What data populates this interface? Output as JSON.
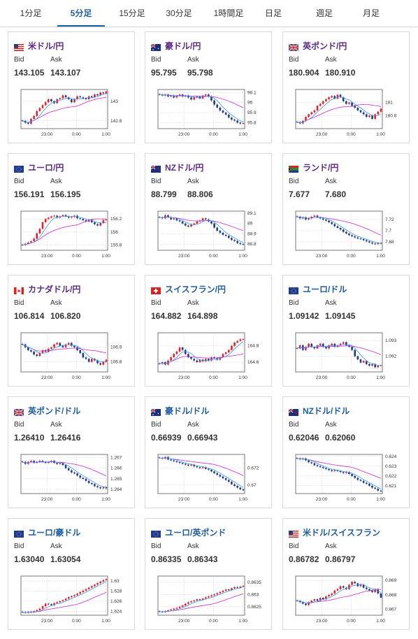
{
  "tabs": [
    {
      "label": "1分足",
      "active": false
    },
    {
      "label": "5分足",
      "active": true
    },
    {
      "label": "15分足",
      "active": false
    },
    {
      "label": "30分足",
      "active": false
    },
    {
      "label": "1時間足",
      "active": false
    },
    {
      "label": "日足",
      "active": false
    },
    {
      "label": "週足",
      "active": false
    },
    {
      "label": "月足",
      "active": false
    }
  ],
  "bid_label": "Bid",
  "ask_label": "Ask",
  "x_ticks": [
    "23:00",
    "0:00",
    "1:00"
  ],
  "colors": {
    "up": "#e0202c",
    "down": "#1c3a8c",
    "ma_short": "#3b9ae0",
    "ma_long": "#cc2ad6",
    "title_purple": "#5a2a86",
    "title_blue": "#1f5d9f",
    "grid": "#c8c8c8"
  },
  "cards": [
    {
      "title": "米ドル/円",
      "title_color": "purple",
      "flag": "us-flag",
      "bid": "143.105",
      "ask": "143.107",
      "y_ticks": [
        "143",
        "142.8"
      ],
      "chart_data": {
        "type": "candlestick",
        "ylim": [
          142.72,
          143.12
        ],
        "closes": [
          142.8,
          142.78,
          142.77,
          142.82,
          142.85,
          142.9,
          142.93,
          142.96,
          142.99,
          143.02,
          143.0,
          142.98,
          143.02,
          143.03,
          143.06,
          143.04,
          143.02,
          142.99,
          143.02,
          143.05,
          143.04,
          143.03,
          143.02,
          143.05,
          143.04,
          143.07,
          143.06,
          143.09,
          143.08,
          143.1
        ]
      }
    },
    {
      "title": "豪ドル/円",
      "title_color": "purple",
      "flag": "au-flag",
      "bid": "95.795",
      "ask": "95.798",
      "y_ticks": [
        "96.1",
        "96",
        "95.9",
        "95.8"
      ],
      "chart_data": {
        "type": "candlestick",
        "ylim": [
          95.74,
          96.13
        ],
        "closes": [
          96.08,
          96.07,
          96.08,
          96.06,
          96.07,
          96.05,
          96.07,
          96.08,
          96.06,
          96.07,
          96.05,
          96.03,
          96.05,
          96.06,
          96.04,
          96.07,
          96.08,
          96.06,
          96.02,
          95.98,
          95.95,
          95.92,
          95.9,
          95.88,
          95.85,
          95.83,
          95.82,
          95.8,
          95.79,
          95.795
        ]
      }
    },
    {
      "title": "英ポンド/円",
      "title_color": "purple",
      "flag": "gb-flag",
      "bid": "180.904",
      "ask": "180.910",
      "y_ticks": [
        "181",
        "180.8"
      ],
      "chart_data": {
        "type": "candlestick",
        "ylim": [
          180.6,
          181.2
        ],
        "closes": [
          180.7,
          180.68,
          180.72,
          180.78,
          180.82,
          180.85,
          180.88,
          180.95,
          180.98,
          181.02,
          181.05,
          181.08,
          181.1,
          181.06,
          181.12,
          181.08,
          181.02,
          180.98,
          181.0,
          180.95,
          180.92,
          180.88,
          180.85,
          180.82,
          180.78,
          180.8,
          180.75,
          180.82,
          180.86,
          180.904
        ]
      }
    },
    {
      "title": "ユーロ/円",
      "title_color": "purple",
      "flag": "eu-flag",
      "bid": "156.191",
      "ask": "156.195",
      "y_ticks": [
        "156.2",
        "156",
        "155.8"
      ],
      "chart_data": {
        "type": "candlestick",
        "ylim": [
          155.72,
          156.32
        ],
        "closes": [
          155.8,
          155.82,
          155.84,
          155.86,
          155.9,
          155.98,
          156.05,
          156.15,
          156.2,
          156.22,
          156.24,
          156.25,
          156.22,
          156.24,
          156.26,
          156.24,
          156.22,
          156.23,
          156.25,
          156.21,
          156.2,
          156.18,
          156.16,
          156.19,
          156.15,
          156.12,
          156.1,
          156.14,
          156.18,
          156.191
        ]
      }
    },
    {
      "title": "NZドル/円",
      "title_color": "purple",
      "flag": "nz-flag",
      "bid": "88.799",
      "ask": "88.806",
      "y_ticks": [
        "89.1",
        "89",
        "88.9",
        "88.8"
      ],
      "chart_data": {
        "type": "candlestick",
        "ylim": [
          88.74,
          89.12
        ],
        "closes": [
          89.06,
          89.05,
          89.08,
          89.06,
          89.04,
          89.05,
          89.03,
          89.02,
          89.0,
          88.98,
          88.97,
          88.99,
          89.0,
          89.02,
          89.03,
          89.05,
          89.04,
          89.02,
          89.0,
          88.96,
          88.93,
          88.91,
          88.89,
          88.88,
          88.86,
          88.84,
          88.83,
          88.81,
          88.8,
          88.799
        ]
      }
    },
    {
      "title": "ランド/円",
      "title_color": "purple",
      "flag": "za-flag",
      "bid": "7.677",
      "ask": "7.680",
      "y_ticks": [
        "7.72",
        "7.7",
        "7.68"
      ],
      "chart_data": {
        "type": "candlestick",
        "ylim": [
          7.665,
          7.735
        ],
        "closes": [
          7.725,
          7.722,
          7.724,
          7.72,
          7.722,
          7.725,
          7.727,
          7.724,
          7.722,
          7.72,
          7.718,
          7.715,
          7.712,
          7.708,
          7.705,
          7.702,
          7.698,
          7.695,
          7.692,
          7.69,
          7.688,
          7.686,
          7.685,
          7.683,
          7.681,
          7.679,
          7.677,
          7.676,
          7.678,
          7.677
        ]
      }
    },
    {
      "title": "カナダドル/円",
      "title_color": "purple",
      "flag": "ca-flag",
      "bid": "106.814",
      "ask": "106.820",
      "y_ticks": [
        "106.9",
        "106.8"
      ],
      "chart_data": {
        "type": "candlestick",
        "ylim": [
          106.73,
          107.0
        ],
        "closes": [
          106.92,
          106.9,
          106.88,
          106.87,
          106.85,
          106.84,
          106.86,
          106.88,
          106.87,
          106.89,
          106.9,
          106.92,
          106.93,
          106.91,
          106.9,
          106.92,
          106.93,
          106.91,
          106.9,
          106.88,
          106.86,
          106.83,
          106.82,
          106.8,
          106.82,
          106.81,
          106.79,
          106.78,
          106.8,
          106.814
        ]
      }
    },
    {
      "title": "スイスフラン/円",
      "title_color": "blue",
      "flag": "ch-flag",
      "bid": "164.882",
      "ask": "164.898",
      "y_ticks": [
        "164.8",
        "164.6"
      ],
      "chart_data": {
        "type": "candlestick",
        "ylim": [
          164.48,
          164.96
        ],
        "closes": [
          164.58,
          164.6,
          164.57,
          164.62,
          164.66,
          164.7,
          164.73,
          164.78,
          164.75,
          164.7,
          164.66,
          164.64,
          164.62,
          164.6,
          164.63,
          164.61,
          164.64,
          164.62,
          164.66,
          164.65,
          164.63,
          164.66,
          164.7,
          164.72,
          164.75,
          164.8,
          164.84,
          164.86,
          164.88,
          164.882
        ]
      }
    },
    {
      "title": "ユーロ/ドル",
      "title_color": "blue",
      "flag": "eu-flag",
      "bid": "1.09142",
      "ask": "1.09145",
      "y_ticks": [
        "1.093",
        "1.092"
      ],
      "chart_data": {
        "type": "candlestick",
        "ylim": [
          1.091,
          1.0935
        ],
        "closes": [
          1.0925,
          1.0927,
          1.0924,
          1.0926,
          1.0928,
          1.0926,
          1.0925,
          1.0927,
          1.0928,
          1.0926,
          1.0925,
          1.0927,
          1.0928,
          1.0926,
          1.0927,
          1.0928,
          1.0929,
          1.0927,
          1.0926,
          1.0924,
          1.092,
          1.0918,
          1.0916,
          1.0917,
          1.0915,
          1.0914,
          1.0915,
          1.0913,
          1.0914,
          1.09142
        ]
      }
    },
    {
      "title": "英ポンド/ドル",
      "title_color": "blue",
      "flag": "gb-flag",
      "bid": "1.26410",
      "ask": "1.26416",
      "y_ticks": [
        "1.267",
        "1.266",
        "1.265",
        "1.264"
      ],
      "chart_data": {
        "type": "candlestick",
        "ylim": [
          1.2636,
          1.2673
        ],
        "closes": [
          1.2666,
          1.2664,
          1.2666,
          1.2667,
          1.2665,
          1.2666,
          1.2667,
          1.2666,
          1.2665,
          1.2666,
          1.2667,
          1.2665,
          1.2664,
          1.2665,
          1.2663,
          1.266,
          1.2658,
          1.2656,
          1.2655,
          1.2653,
          1.2651,
          1.265,
          1.2648,
          1.2646,
          1.2645,
          1.2643,
          1.2642,
          1.2641,
          1.2642,
          1.2641
        ]
      }
    },
    {
      "title": "豪ドル/ドル",
      "title_color": "blue",
      "flag": "au-flag",
      "bid": "0.66939",
      "ask": "0.66943",
      "y_ticks": [
        "0.672",
        "0.67"
      ],
      "chart_data": {
        "type": "candlestick",
        "ylim": [
          0.669,
          0.6736
        ],
        "closes": [
          0.6732,
          0.6731,
          0.6733,
          0.673,
          0.6729,
          0.6728,
          0.6727,
          0.6726,
          0.6725,
          0.6724,
          0.6723,
          0.6724,
          0.6722,
          0.6721,
          0.672,
          0.6721,
          0.6719,
          0.6718,
          0.6716,
          0.6714,
          0.6712,
          0.671,
          0.6708,
          0.6706,
          0.6704,
          0.6701,
          0.6699,
          0.6697,
          0.6695,
          0.66939
        ]
      }
    },
    {
      "title": "NZドル/ドル",
      "title_color": "blue",
      "flag": "nz-flag",
      "bid": "0.62046",
      "ask": "0.62060",
      "y_ticks": [
        "0.624",
        "0.623",
        "0.622",
        "0.621"
      ],
      "chart_data": {
        "type": "candlestick",
        "ylim": [
          0.6202,
          0.6242
        ],
        "closes": [
          0.6238,
          0.6237,
          0.6238,
          0.6236,
          0.6234,
          0.6233,
          0.6231,
          0.623,
          0.6229,
          0.6228,
          0.6227,
          0.6226,
          0.6225,
          0.6226,
          0.6225,
          0.6224,
          0.6223,
          0.6224,
          0.6222,
          0.622,
          0.6218,
          0.6216,
          0.6215,
          0.6213,
          0.6212,
          0.621,
          0.6208,
          0.6207,
          0.6205,
          0.62046
        ]
      }
    },
    {
      "title": "ユーロ/豪ドル",
      "title_color": "blue",
      "flag": "eu-flag",
      "bid": "1.63040",
      "ask": "1.63054",
      "y_ticks": [
        "1.63",
        "1.628",
        "1.626",
        "1.624"
      ],
      "chart_data": {
        "type": "candlestick",
        "ylim": [
          1.6232,
          1.631
        ],
        "closes": [
          1.6238,
          1.6237,
          1.6239,
          1.6238,
          1.624,
          1.6242,
          1.6245,
          1.625,
          1.6255,
          1.6254,
          1.6252,
          1.6256,
          1.6258,
          1.626,
          1.6262,
          1.6265,
          1.6268,
          1.627,
          1.6272,
          1.6275,
          1.6278,
          1.6281,
          1.6284,
          1.6287,
          1.629,
          1.6293,
          1.6296,
          1.6299,
          1.6302,
          1.6304
        ]
      }
    },
    {
      "title": "ユーロ/英ポンド",
      "title_color": "blue",
      "flag": "eu-flag",
      "bid": "0.86335",
      "ask": "0.86343",
      "y_ticks": [
        "0.8635",
        "0.863",
        "0.8625"
      ],
      "chart_data": {
        "type": "candlestick",
        "ylim": [
          0.86215,
          0.86375
        ],
        "closes": [
          0.8623,
          0.86228,
          0.86232,
          0.86235,
          0.86238,
          0.86242,
          0.86245,
          0.8625,
          0.86255,
          0.86262,
          0.86268,
          0.86272,
          0.86275,
          0.8628,
          0.86278,
          0.86283,
          0.86288,
          0.86292,
          0.86296,
          0.863,
          0.86305,
          0.8631,
          0.86315,
          0.8632,
          0.86318,
          0.86325,
          0.8633,
          0.86328,
          0.86332,
          0.86335
        ]
      }
    },
    {
      "title": "米ドル/スイスフラン",
      "title_color": "blue",
      "flag": "us-flag",
      "bid": "0.86782",
      "ask": "0.86797",
      "y_ticks": [
        "0.869",
        "0.868",
        "0.867"
      ],
      "chart_data": {
        "type": "candlestick",
        "ylim": [
          0.8666,
          0.8693
        ],
        "closes": [
          0.8676,
          0.8675,
          0.8674,
          0.8673,
          0.8675,
          0.8676,
          0.8677,
          0.8676,
          0.8678,
          0.8677,
          0.8679,
          0.868,
          0.8681,
          0.8683,
          0.8684,
          0.8686,
          0.8685,
          0.8684,
          0.8687,
          0.8689,
          0.8688,
          0.8686,
          0.8687,
          0.8685,
          0.8684,
          0.8683,
          0.8682,
          0.8684,
          0.8681,
          0.86782
        ]
      }
    }
  ]
}
